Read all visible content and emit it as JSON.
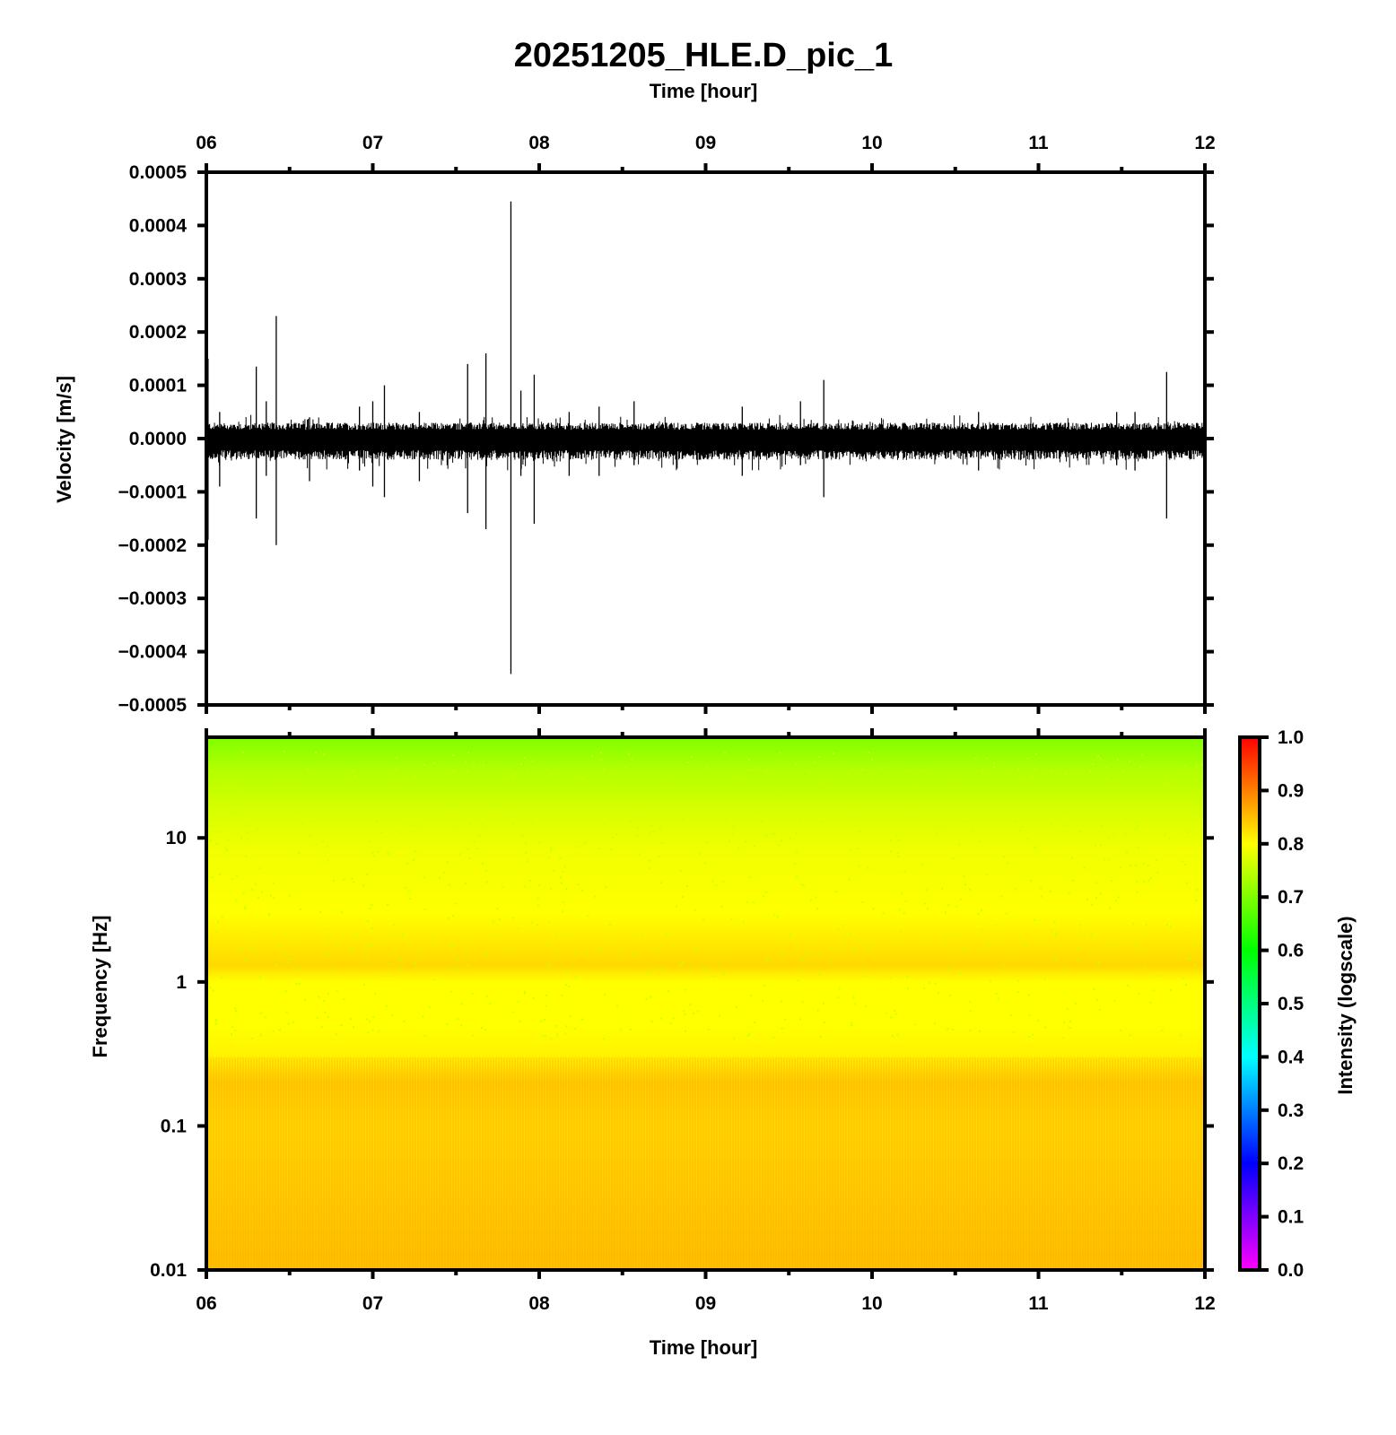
{
  "title": "20251205_HLE.D_pic_1",
  "chart_data": [
    {
      "type": "line",
      "name": "waveform",
      "xlabel": "Time [hour]",
      "ylabel": "Velocity [m/s]",
      "x_ticks": [
        "06",
        "07",
        "08",
        "09",
        "10",
        "11",
        "12"
      ],
      "xlim": [
        6,
        12
      ],
      "ylim": [
        -0.0005,
        0.0005
      ],
      "y_ticks": [
        "0.0005",
        "0.0004",
        "0.0003",
        "0.0002",
        "0.0001",
        "0.0000",
        "−0.0001",
        "−0.0002",
        "−0.0003",
        "−0.0004",
        "−0.0005"
      ],
      "y_tick_values": [
        0.0005,
        0.0004,
        0.0003,
        0.0002,
        0.0001,
        0,
        -0.0001,
        -0.0002,
        -0.0003,
        -0.0004,
        -0.0005
      ],
      "noise_envelope": {
        "upper": 3e-05,
        "lower": -4e-05
      },
      "spikes": [
        {
          "t": 6.01,
          "max": 0.00015,
          "min": -0.00019
        },
        {
          "t": 6.08,
          "max": 5e-05,
          "min": -9e-05
        },
        {
          "t": 6.3,
          "max": 0.000135,
          "min": -0.00015
        },
        {
          "t": 6.36,
          "max": 7e-05,
          "min": -7e-05
        },
        {
          "t": 6.42,
          "max": 0.00023,
          "min": -0.0002
        },
        {
          "t": 6.62,
          "max": 4e-05,
          "min": -8e-05
        },
        {
          "t": 6.92,
          "max": 6e-05,
          "min": -6e-05
        },
        {
          "t": 7.0,
          "max": 7e-05,
          "min": -9e-05
        },
        {
          "t": 7.07,
          "max": 0.0001,
          "min": -0.00011
        },
        {
          "t": 7.28,
          "max": 5e-05,
          "min": -8e-05
        },
        {
          "t": 7.57,
          "max": 0.00014,
          "min": -0.00014
        },
        {
          "t": 7.68,
          "max": 0.00016,
          "min": -0.00017
        },
        {
          "t": 7.83,
          "max": 0.000445,
          "min": -0.000442
        },
        {
          "t": 7.89,
          "max": 9e-05,
          "min": -7e-05
        },
        {
          "t": 7.97,
          "max": 0.00012,
          "min": -0.00016
        },
        {
          "t": 8.18,
          "max": 5e-05,
          "min": -7e-05
        },
        {
          "t": 8.36,
          "max": 6e-05,
          "min": -7e-05
        },
        {
          "t": 8.57,
          "max": 7e-05,
          "min": -5e-05
        },
        {
          "t": 9.22,
          "max": 6e-05,
          "min": -7e-05
        },
        {
          "t": 9.57,
          "max": 7e-05,
          "min": -5e-05
        },
        {
          "t": 9.71,
          "max": 0.00011,
          "min": -0.00011
        },
        {
          "t": 10.64,
          "max": 5e-05,
          "min": -6e-05
        },
        {
          "t": 11.47,
          "max": 5e-05,
          "min": -5e-05
        },
        {
          "t": 11.58,
          "max": 5e-05,
          "min": -6e-05
        },
        {
          "t": 11.77,
          "max": 0.000125,
          "min": -0.00015
        }
      ]
    },
    {
      "type": "heatmap",
      "name": "spectrogram",
      "xlabel": "Time [hour]",
      "ylabel": "Frequency [Hz]",
      "x_ticks": [
        "06",
        "07",
        "08",
        "09",
        "10",
        "11",
        "12"
      ],
      "xlim": [
        6,
        12
      ],
      "y_scale": "log",
      "ylim": [
        0.01,
        50
      ],
      "y_ticks": [
        "10",
        "1",
        "0.1",
        "0.01"
      ],
      "y_tick_values": [
        10,
        1,
        0.1,
        0.01
      ],
      "intensity_profile": [
        {
          "freq": 50,
          "intensity": 0.7
        },
        {
          "freq": 30,
          "intensity": 0.74
        },
        {
          "freq": 15,
          "intensity": 0.77
        },
        {
          "freq": 8,
          "intensity": 0.79
        },
        {
          "freq": 3,
          "intensity": 0.8
        },
        {
          "freq": 1.3,
          "intensity": 0.83
        },
        {
          "freq": 1.0,
          "intensity": 0.8
        },
        {
          "freq": 0.5,
          "intensity": 0.8
        },
        {
          "freq": 0.3,
          "intensity": 0.81
        },
        {
          "freq": 0.2,
          "intensity": 0.84
        },
        {
          "freq": 0.1,
          "intensity": 0.83
        },
        {
          "freq": 0.03,
          "intensity": 0.84
        },
        {
          "freq": 0.01,
          "intensity": 0.85
        }
      ],
      "colorbar": {
        "label": "Intensity (logscale)",
        "range": [
          0.0,
          1.0
        ],
        "ticks": [
          "1.0",
          "0.9",
          "0.8",
          "0.7",
          "0.6",
          "0.5",
          "0.4",
          "0.3",
          "0.2",
          "0.1",
          "0.0"
        ],
        "tick_values": [
          1.0,
          0.9,
          0.8,
          0.7,
          0.6,
          0.5,
          0.4,
          0.3,
          0.2,
          0.1,
          0.0
        ],
        "colormap": "rainbow",
        "colors": [
          "#ff00ff",
          "#7f00ff",
          "#0000ff",
          "#007fff",
          "#00ffff",
          "#00ff7f",
          "#00ff00",
          "#7fff00",
          "#ffff00",
          "#ff7f00",
          "#ff0000"
        ]
      }
    }
  ]
}
